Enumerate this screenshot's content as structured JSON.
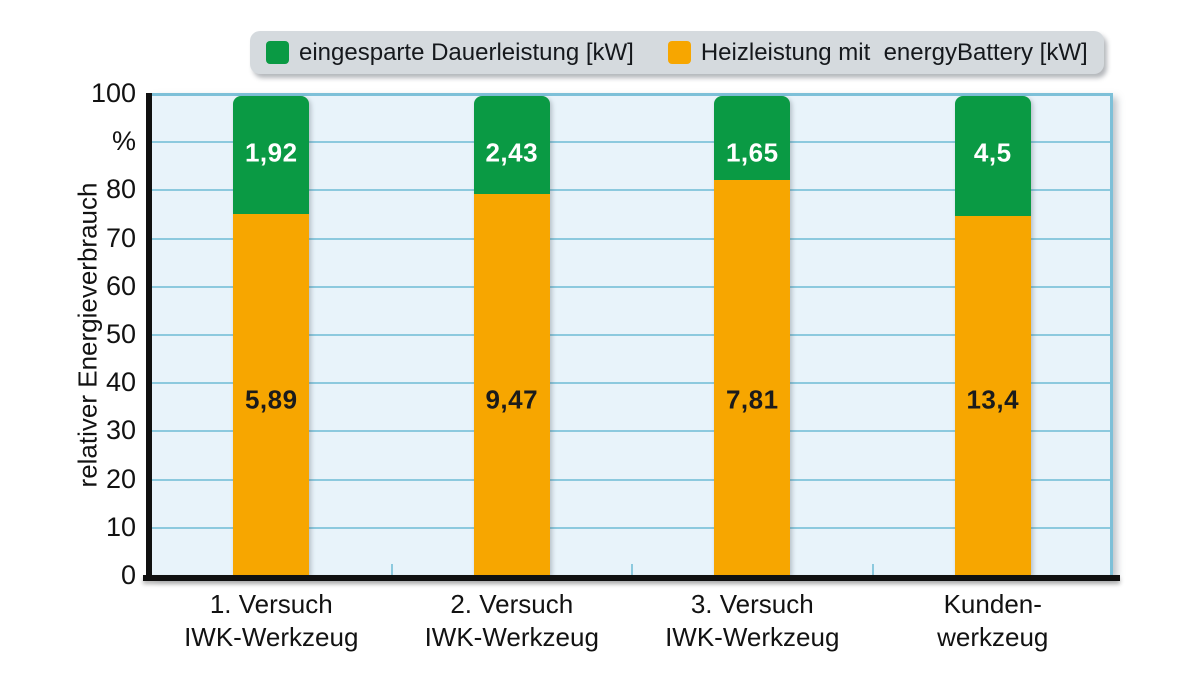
{
  "legend": {
    "items": [
      {
        "id": "saved-power",
        "label": "eingesparte Dauerleistung [kW]",
        "color": "#0a9a44"
      },
      {
        "id": "heating-power",
        "label": "Heizleistung mit  energyBattery [kW]",
        "color": "#f7a600"
      }
    ]
  },
  "chart_data": {
    "type": "bar",
    "stacked": true,
    "normalized_to_100_percent": true,
    "title": "",
    "xlabel": "",
    "ylabel": "relativer Energieverbrauch",
    "y_unit": "%",
    "ylim": [
      0,
      100
    ],
    "grid": "horizontal, every 10",
    "legend_position": "top",
    "yticks": [
      {
        "label": "100",
        "value": 100
      },
      {
        "label": "%",
        "value": 90
      },
      {
        "label": "80",
        "value": 80
      },
      {
        "label": "70",
        "value": 70
      },
      {
        "label": "60",
        "value": 60
      },
      {
        "label": "50",
        "value": 50
      },
      {
        "label": "40",
        "value": 40
      },
      {
        "label": "30",
        "value": 30
      },
      {
        "label": "20",
        "value": 20
      },
      {
        "label": "10",
        "value": 10
      },
      {
        "label": "0",
        "value": 0
      }
    ],
    "categories": [
      [
        "1. Versuch",
        "IWK-Werkzeug"
      ],
      [
        "2. Versuch",
        "IWK-Werkzeug"
      ],
      [
        "3. Versuch",
        "IWK-Werkzeug"
      ],
      [
        "Kunden-",
        "werkzeug"
      ]
    ],
    "series": [
      {
        "name": "Heizleistung mit energyBattery [kW]",
        "stack_position": "bottom",
        "color": "#f7a600",
        "label_color": "#1b1b1b",
        "values": [
          5.89,
          9.47,
          7.81,
          13.4
        ],
        "labels": [
          "5,89",
          "9,47",
          "7,81",
          "13,4"
        ]
      },
      {
        "name": "eingesparte Dauerleistung [kW]",
        "stack_position": "top",
        "color": "#0a9a44",
        "label_color": "#ffffff",
        "values": [
          1.92,
          2.43,
          1.65,
          4.5
        ],
        "labels": [
          "1,92",
          "2,43",
          "1,65",
          "4,5"
        ]
      }
    ]
  },
  "colors": {
    "plot_background": "#e8f3fa",
    "gridline": "#8cc9de",
    "panel_border": "#7dc0d8",
    "axis": "#101010",
    "legend_background": "#d5dade",
    "page_background": "#ffffff"
  }
}
